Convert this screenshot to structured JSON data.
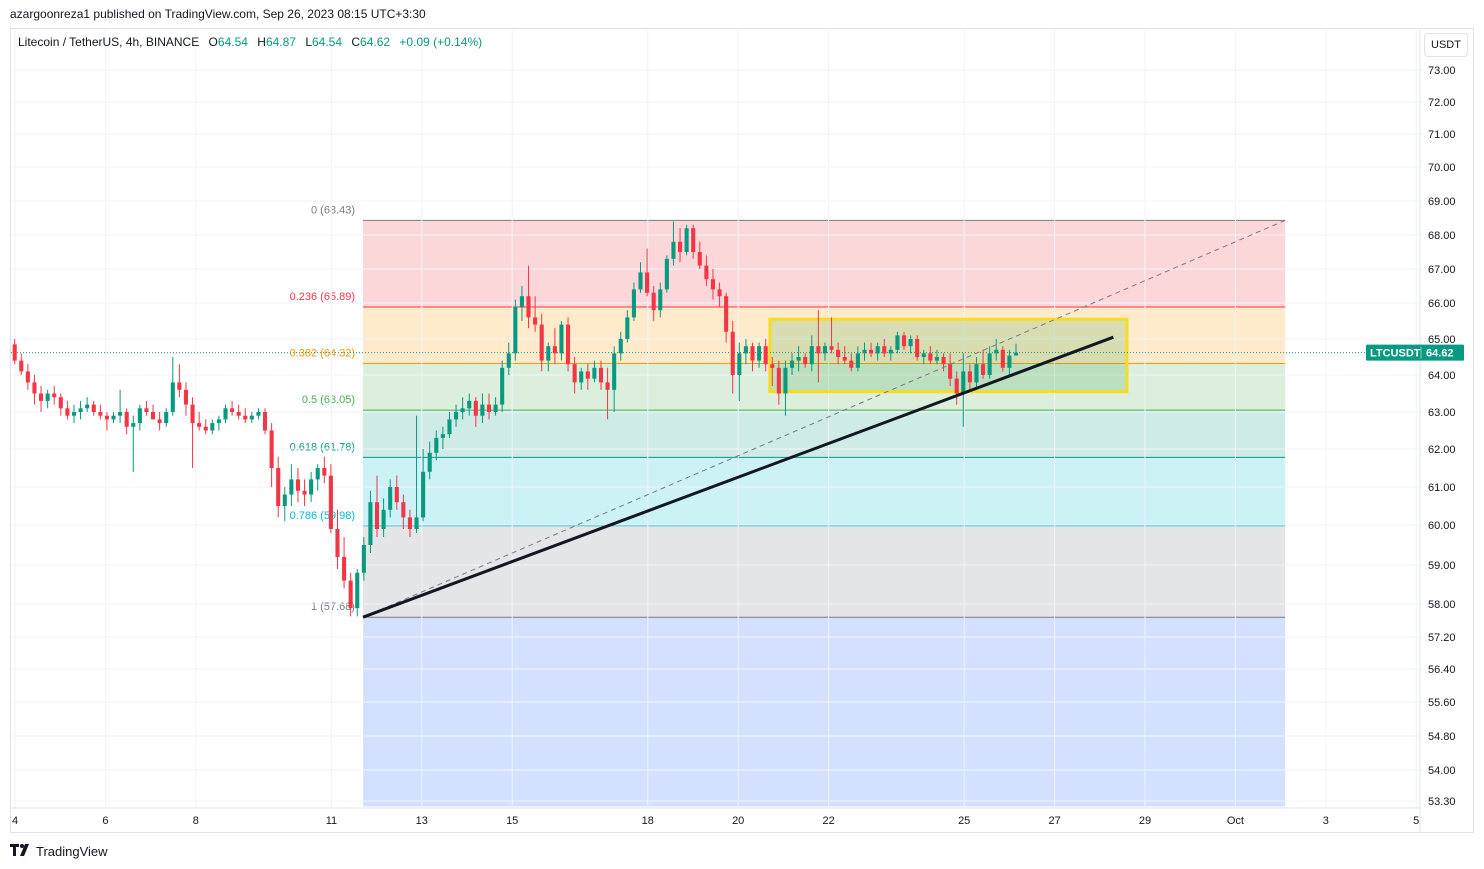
{
  "header": {
    "publisher_line": "azargoonreza1 published on TradingView.com, Sep 26, 2023 08:15 UTC+3:30"
  },
  "legend": {
    "symbol": "Litecoin / TetherUS, 4h, BINANCE",
    "open_label": "O",
    "open": "64.54",
    "high_label": "H",
    "high": "64.87",
    "low_label": "L",
    "low": "64.54",
    "close_label": "C",
    "close": "64.62",
    "change": "+0.09 (+0.14%)"
  },
  "toolbar": {
    "currency": "USDT"
  },
  "footer": {
    "brand": "TradingView",
    "logo_icon": "tradingview-logo-icon"
  },
  "colors": {
    "up": "#089981",
    "down": "#f23645",
    "fib_0": "#787b86",
    "fib_236": "#f23645",
    "fib_382": "#ff9800",
    "fib_5": "#4caf50",
    "fib_618": "#089981",
    "fib_786": "#00bcd4",
    "fib_1": "#787b86",
    "box": "#f7dc24",
    "trendline": "#131722",
    "last_price_bg": "#089981"
  },
  "chart_data": {
    "type": "candlestick",
    "symbol": "LTCUSDT",
    "interval": "4h",
    "exchange": "BINANCE",
    "last_price": 64.62,
    "last_price_label": "LTCUSDT",
    "last_price_value": "64.62",
    "y_ticks": [
      "73.00",
      "72.00",
      "71.00",
      "70.00",
      "69.00",
      "68.00",
      "67.00",
      "66.00",
      "65.00",
      "64.00",
      "63.00",
      "62.00",
      "61.00",
      "60.00",
      "59.00",
      "58.00",
      "57.20",
      "56.40",
      "55.60",
      "54.80",
      "54.00",
      "53.30"
    ],
    "x_ticks": [
      "4",
      "6",
      "8",
      "11",
      "13",
      "15",
      "18",
      "20",
      "22",
      "25",
      "27",
      "29",
      "Oct",
      "3",
      "5"
    ],
    "x_tick_days": [
      4,
      6,
      8,
      11,
      13,
      15,
      18,
      20,
      22,
      25,
      27,
      29,
      31,
      33,
      35
    ],
    "x_range_days": [
      3.9,
      35.0
    ],
    "y_range": [
      53.3,
      73.4
    ],
    "fibonacci": {
      "start": {
        "day": 11.7,
        "price": 57.68
      },
      "end": {
        "day": 19.4,
        "price": 68.43
      },
      "extends_to_day": 32.1,
      "extension_bottom": 53.2,
      "levels": [
        {
          "ratio": "0",
          "price": 68.43,
          "label": "0 (68.43)"
        },
        {
          "ratio": "0.236",
          "price": 65.89,
          "label": "0.236 (65.89)"
        },
        {
          "ratio": "0.382",
          "price": 64.32,
          "label": "0.382 (64.32)"
        },
        {
          "ratio": "0.5",
          "price": 63.05,
          "label": "0.5 (63.05)"
        },
        {
          "ratio": "0.618",
          "price": 61.78,
          "label": "0.618 (61.78)"
        },
        {
          "ratio": "0.786",
          "price": 59.98,
          "label": "0.786 (59.98)"
        },
        {
          "ratio": "1",
          "price": 57.68,
          "label": "1 (57.68)"
        }
      ]
    },
    "range_box": {
      "from_day": 20.7,
      "to_day": 28.6,
      "top": 65.55,
      "bottom": 63.55
    },
    "trendline": {
      "from": {
        "day": 11.7,
        "price": 57.68
      },
      "to": {
        "day": 28.3,
        "price": 65.05
      }
    },
    "fib_diagonal": {
      "from": {
        "day": 11.7,
        "price": 57.68
      },
      "to": {
        "day": 32.1,
        "price": 68.43
      }
    },
    "candles": [
      [
        64.85,
        65.0,
        64.3,
        64.4
      ],
      [
        64.4,
        64.6,
        64.0,
        64.1
      ],
      [
        64.1,
        64.3,
        63.6,
        63.8
      ],
      [
        63.8,
        64.0,
        63.2,
        63.5
      ],
      [
        63.5,
        63.7,
        63.0,
        63.3
      ],
      [
        63.3,
        63.6,
        63.1,
        63.5
      ],
      [
        63.5,
        63.7,
        63.2,
        63.4
      ],
      [
        63.4,
        63.5,
        62.9,
        63.1
      ],
      [
        63.1,
        63.3,
        62.8,
        62.9
      ],
      [
        62.9,
        63.2,
        62.7,
        63.0
      ],
      [
        63.0,
        63.3,
        62.8,
        63.1
      ],
      [
        63.1,
        63.4,
        63.0,
        63.2
      ],
      [
        63.2,
        63.3,
        62.9,
        63.0
      ],
      [
        63.0,
        63.2,
        62.8,
        62.9
      ],
      [
        62.9,
        63.0,
        62.5,
        62.8
      ],
      [
        62.8,
        63.0,
        62.7,
        62.9
      ],
      [
        62.9,
        63.6,
        62.7,
        63.0
      ],
      [
        63.0,
        63.1,
        62.4,
        62.6
      ],
      [
        62.6,
        62.9,
        61.4,
        62.7
      ],
      [
        62.7,
        63.2,
        62.5,
        63.1
      ],
      [
        63.1,
        63.3,
        62.9,
        63.0
      ],
      [
        63.0,
        63.2,
        62.8,
        62.8
      ],
      [
        62.8,
        63.0,
        62.5,
        62.7
      ],
      [
        62.7,
        63.1,
        62.6,
        63.0
      ],
      [
        63.0,
        64.5,
        62.9,
        63.8
      ],
      [
        63.8,
        64.3,
        63.4,
        63.6
      ],
      [
        63.6,
        63.8,
        62.9,
        63.2
      ],
      [
        63.2,
        63.4,
        61.5,
        62.7
      ],
      [
        62.7,
        63.0,
        62.5,
        62.6
      ],
      [
        62.6,
        62.8,
        62.4,
        62.5
      ],
      [
        62.5,
        62.8,
        62.4,
        62.7
      ],
      [
        62.7,
        62.9,
        62.5,
        62.8
      ],
      [
        62.8,
        63.2,
        62.7,
        63.1
      ],
      [
        63.1,
        63.3,
        62.9,
        63.0
      ],
      [
        63.0,
        63.2,
        62.8,
        62.9
      ],
      [
        62.9,
        63.1,
        62.7,
        62.8
      ],
      [
        62.8,
        63.0,
        62.7,
        62.9
      ],
      [
        62.9,
        63.1,
        62.8,
        63.0
      ],
      [
        63.0,
        63.1,
        62.4,
        62.5
      ],
      [
        62.5,
        62.7,
        61.0,
        61.5
      ],
      [
        61.5,
        61.8,
        60.2,
        60.5
      ],
      [
        60.5,
        61.0,
        60.1,
        60.8
      ],
      [
        60.8,
        61.6,
        60.5,
        61.2
      ],
      [
        61.2,
        61.5,
        60.6,
        60.9
      ],
      [
        60.9,
        61.2,
        60.5,
        60.8
      ],
      [
        60.8,
        61.4,
        60.6,
        61.2
      ],
      [
        61.2,
        61.6,
        60.9,
        61.5
      ],
      [
        61.5,
        61.8,
        61.1,
        61.3
      ],
      [
        61.3,
        61.6,
        59.8,
        59.9
      ],
      [
        59.9,
        60.4,
        58.9,
        59.2
      ],
      [
        59.2,
        59.7,
        58.4,
        58.6
      ],
      [
        58.6,
        58.8,
        57.7,
        57.9
      ],
      [
        57.9,
        58.9,
        57.7,
        58.8
      ],
      [
        58.8,
        59.7,
        58.6,
        59.5
      ],
      [
        59.5,
        60.9,
        59.3,
        60.6
      ],
      [
        60.6,
        61.3,
        59.7,
        59.9
      ],
      [
        59.9,
        60.7,
        59.7,
        60.4
      ],
      [
        60.4,
        61.2,
        60.2,
        61.0
      ],
      [
        61.0,
        61.3,
        60.4,
        60.6
      ],
      [
        60.6,
        60.8,
        59.9,
        60.2
      ],
      [
        60.2,
        60.4,
        59.7,
        59.9
      ],
      [
        59.9,
        62.9,
        59.8,
        60.2
      ],
      [
        60.2,
        62.0,
        60.1,
        61.4
      ],
      [
        61.4,
        62.2,
        61.2,
        61.9
      ],
      [
        61.9,
        62.5,
        61.7,
        62.3
      ],
      [
        62.3,
        62.6,
        62.0,
        62.4
      ],
      [
        62.4,
        63.0,
        62.3,
        62.8
      ],
      [
        62.8,
        63.2,
        62.6,
        63.0
      ],
      [
        63.0,
        63.4,
        62.8,
        63.1
      ],
      [
        63.1,
        63.5,
        62.9,
        63.3
      ],
      [
        63.3,
        63.4,
        62.6,
        62.9
      ],
      [
        62.9,
        63.5,
        62.7,
        63.2
      ],
      [
        63.2,
        63.5,
        62.8,
        63.0
      ],
      [
        63.0,
        63.4,
        62.9,
        63.2
      ],
      [
        63.2,
        64.4,
        63.0,
        64.2
      ],
      [
        64.2,
        64.9,
        64.0,
        64.6
      ],
      [
        64.6,
        66.1,
        64.4,
        65.9
      ],
      [
        65.9,
        66.5,
        65.5,
        66.2
      ],
      [
        66.2,
        67.1,
        65.3,
        65.6
      ],
      [
        65.6,
        66.2,
        65.2,
        65.4
      ],
      [
        65.4,
        65.7,
        64.1,
        64.4
      ],
      [
        64.4,
        64.9,
        64.1,
        64.8
      ],
      [
        64.8,
        65.3,
        64.3,
        64.6
      ],
      [
        64.6,
        65.5,
        64.4,
        65.4
      ],
      [
        65.4,
        65.6,
        64.1,
        64.3
      ],
      [
        64.3,
        64.5,
        63.5,
        63.8
      ],
      [
        63.8,
        64.2,
        63.6,
        64.1
      ],
      [
        64.1,
        64.3,
        63.6,
        63.9
      ],
      [
        63.9,
        64.4,
        63.8,
        64.2
      ],
      [
        64.2,
        64.4,
        63.6,
        63.8
      ],
      [
        63.8,
        64.2,
        62.8,
        63.6
      ],
      [
        63.6,
        64.8,
        63.0,
        64.6
      ],
      [
        64.6,
        65.2,
        64.4,
        65.0
      ],
      [
        65.0,
        65.8,
        64.9,
        65.6
      ],
      [
        65.6,
        66.6,
        65.5,
        66.4
      ],
      [
        66.4,
        67.2,
        66.3,
        66.9
      ],
      [
        66.9,
        67.6,
        66.2,
        66.3
      ],
      [
        66.3,
        66.5,
        65.5,
        65.8
      ],
      [
        65.8,
        66.6,
        65.6,
        66.4
      ],
      [
        66.4,
        67.4,
        66.3,
        67.3
      ],
      [
        67.3,
        68.4,
        67.1,
        67.8
      ],
      [
        67.8,
        68.2,
        67.2,
        67.5
      ],
      [
        67.5,
        68.3,
        67.4,
        68.2
      ],
      [
        68.2,
        68.3,
        67.3,
        67.5
      ],
      [
        67.5,
        67.8,
        67.0,
        67.1
      ],
      [
        67.1,
        67.4,
        66.5,
        66.7
      ],
      [
        66.7,
        67.0,
        66.1,
        66.4
      ],
      [
        66.4,
        66.6,
        65.9,
        66.2
      ],
      [
        66.2,
        66.3,
        64.9,
        65.2
      ],
      [
        65.2,
        65.5,
        63.5,
        64.0
      ],
      [
        64.0,
        64.9,
        63.3,
        64.6
      ],
      [
        64.6,
        65.0,
        64.3,
        64.8
      ],
      [
        64.8,
        64.9,
        64.1,
        64.4
      ],
      [
        64.4,
        64.9,
        64.2,
        64.8
      ],
      [
        64.8,
        65.0,
        64.1,
        64.3
      ],
      [
        64.3,
        64.5,
        63.7,
        64.2
      ],
      [
        64.2,
        64.4,
        63.2,
        63.5
      ],
      [
        63.5,
        64.4,
        62.9,
        64.2
      ],
      [
        64.2,
        64.6,
        64.0,
        64.4
      ],
      [
        64.4,
        64.8,
        64.1,
        64.5
      ],
      [
        64.5,
        64.6,
        64.2,
        64.3
      ],
      [
        64.3,
        65.1,
        64.1,
        64.8
      ],
      [
        64.8,
        65.8,
        63.8,
        64.6
      ],
      [
        64.6,
        64.9,
        64.4,
        64.8
      ],
      [
        64.8,
        65.6,
        64.6,
        64.7
      ],
      [
        64.7,
        64.9,
        64.3,
        64.5
      ],
      [
        64.5,
        64.8,
        64.3,
        64.4
      ],
      [
        64.4,
        64.6,
        64.1,
        64.2
      ],
      [
        64.2,
        64.8,
        64.1,
        64.6
      ],
      [
        64.6,
        64.9,
        64.4,
        64.7
      ],
      [
        64.7,
        64.9,
        64.5,
        64.6
      ],
      [
        64.6,
        64.9,
        64.4,
        64.8
      ],
      [
        64.8,
        65.0,
        64.5,
        64.6
      ],
      [
        64.6,
        64.8,
        64.4,
        64.7
      ],
      [
        64.7,
        65.2,
        64.6,
        65.1
      ],
      [
        65.1,
        65.2,
        64.7,
        64.8
      ],
      [
        64.8,
        65.1,
        64.6,
        65.0
      ],
      [
        65.0,
        65.1,
        64.4,
        64.5
      ],
      [
        64.5,
        64.7,
        64.3,
        64.6
      ],
      [
        64.6,
        64.8,
        64.3,
        64.4
      ],
      [
        64.4,
        64.7,
        64.3,
        64.5
      ],
      [
        64.5,
        64.6,
        64.1,
        64.3
      ],
      [
        64.3,
        64.6,
        63.7,
        63.9
      ],
      [
        63.9,
        64.1,
        63.2,
        63.5
      ],
      [
        63.5,
        64.6,
        62.6,
        64.1
      ],
      [
        64.1,
        64.3,
        63.6,
        63.8
      ],
      [
        63.8,
        64.5,
        63.6,
        64.3
      ],
      [
        64.3,
        64.7,
        63.9,
        64.0
      ],
      [
        64.0,
        64.8,
        63.9,
        64.6
      ],
      [
        64.6,
        65.0,
        64.4,
        64.7
      ],
      [
        64.7,
        64.8,
        64.1,
        64.2
      ],
      [
        64.2,
        64.7,
        64.0,
        64.54
      ],
      [
        64.54,
        64.87,
        64.54,
        64.62
      ]
    ]
  }
}
